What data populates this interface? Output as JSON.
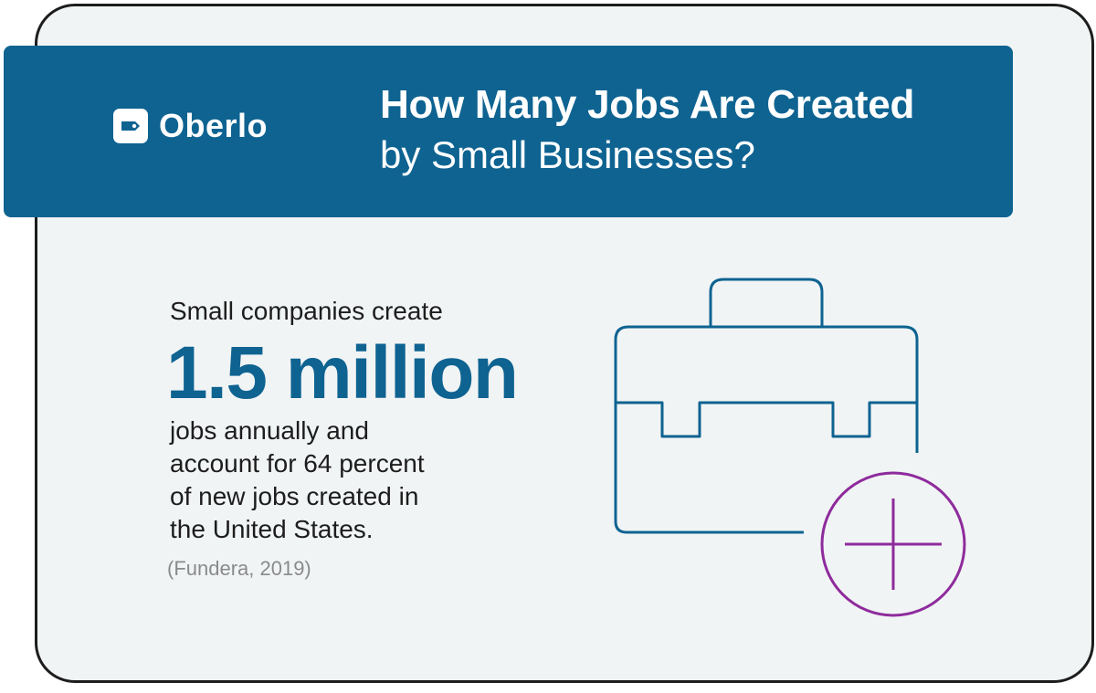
{
  "brand": {
    "logo_text": "Oberlo",
    "logo_icon": "price-tag-icon"
  },
  "header": {
    "title_line1": "How Many Jobs Are Created",
    "title_line2": "by Small Businesses?"
  },
  "stat": {
    "intro": "Small companies create",
    "value": "1.5 million",
    "description_lines": [
      "jobs annually and",
      "account for 64 percent",
      "of new jobs created in",
      "the United States."
    ],
    "source": "(Fundera, 2019)"
  },
  "illustration": {
    "icons": [
      "briefcase-icon",
      "plus-circle-icon"
    ]
  },
  "colors": {
    "brand_blue": "#0e6391",
    "accent_purple": "#8e2b9c",
    "card_background": "#f1f4f5",
    "text_dark": "#1d1d1d",
    "text_muted": "#8a8a8a"
  }
}
